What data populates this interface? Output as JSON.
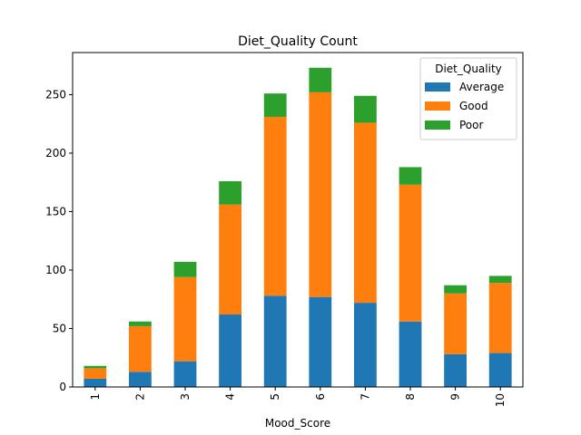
{
  "chart_data": {
    "type": "bar",
    "stacked": true,
    "title": "Diet_Quality Count",
    "xlabel": "Mood_Score",
    "ylabel": "",
    "categories": [
      "1",
      "2",
      "3",
      "4",
      "5",
      "6",
      "7",
      "8",
      "9",
      "10"
    ],
    "series": [
      {
        "name": "Average",
        "color": "#1f77b4",
        "values": [
          7,
          13,
          22,
          62,
          78,
          77,
          72,
          56,
          28,
          29
        ]
      },
      {
        "name": "Good",
        "color": "#ff7f0e",
        "values": [
          9,
          39,
          72,
          94,
          153,
          175,
          154,
          117,
          52,
          60
        ]
      },
      {
        "name": "Poor",
        "color": "#2ca02c",
        "values": [
          2,
          4,
          13,
          20,
          20,
          21,
          23,
          15,
          7,
          6
        ]
      }
    ],
    "ylim": [
      0,
      286
    ],
    "yticks": [
      0,
      50,
      100,
      150,
      200,
      250
    ],
    "legend": {
      "title": "Diet_Quality",
      "placement": "top-right"
    },
    "grid": false
  }
}
